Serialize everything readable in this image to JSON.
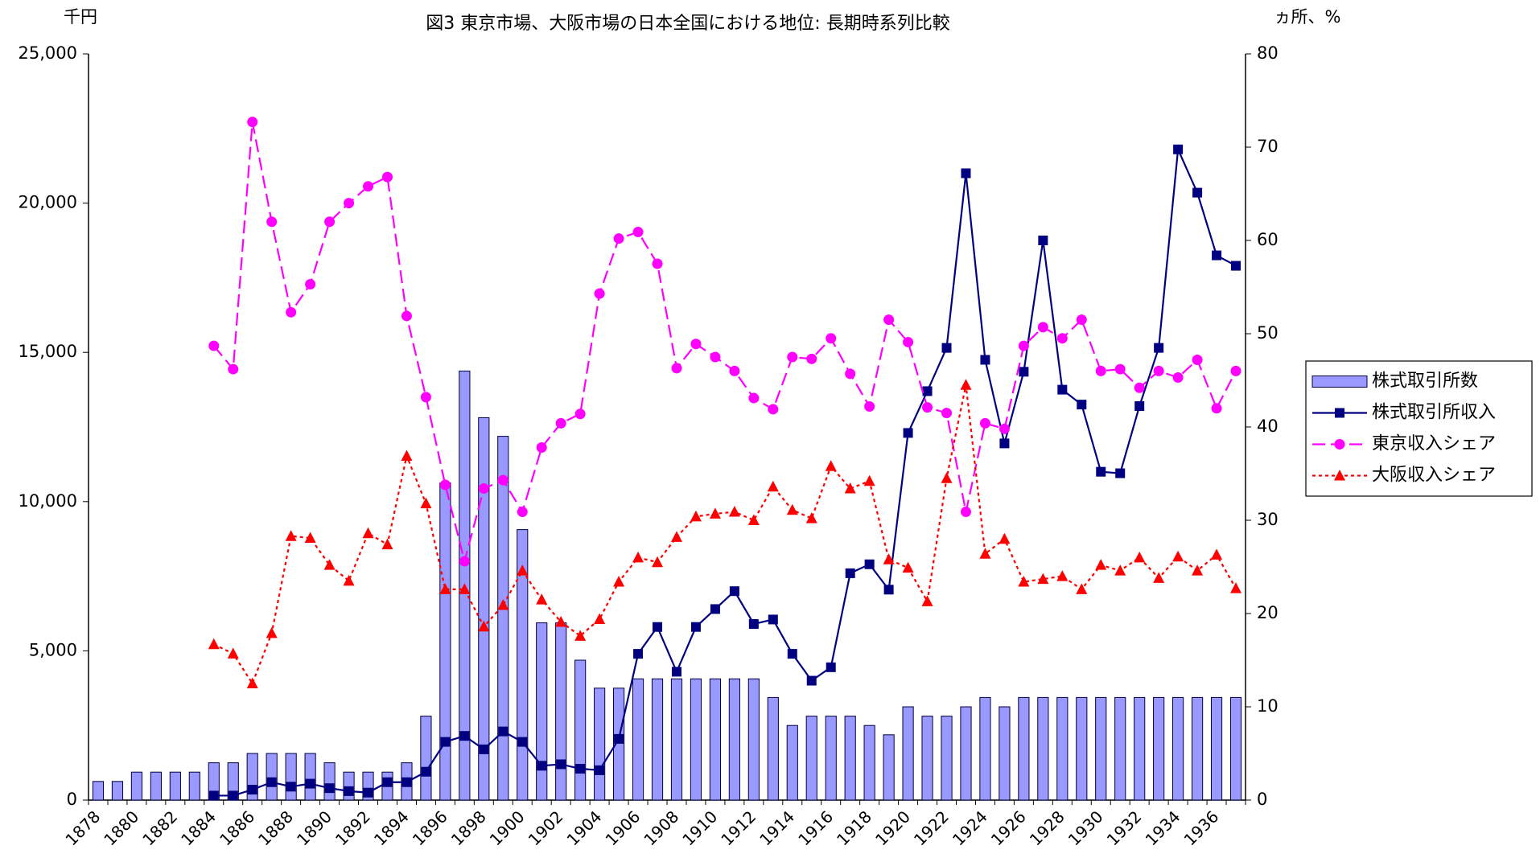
{
  "chart_data": {
    "type": "combo",
    "title": "図3 東京市場、大阪市場の日本全国における地位: 長期時系列比較",
    "y_label": "千円",
    "y2_label": "ヵ所、%",
    "categories": [
      "1878",
      null,
      "1880",
      null,
      "1882",
      null,
      "1884",
      null,
      "1886",
      null,
      "1888",
      null,
      "1890",
      null,
      "1892",
      null,
      "1894",
      null,
      "1896",
      null,
      "1898",
      null,
      "1900",
      null,
      "1902",
      null,
      "1904",
      null,
      "1906",
      null,
      "1908",
      null,
      "1910",
      null,
      "1912",
      null,
      "1914",
      null,
      "1916",
      null,
      "1918",
      null,
      "1920",
      null,
      "1922",
      null,
      "1924",
      null,
      "1926",
      null,
      "1928",
      null,
      "1930",
      null,
      "1932",
      null,
      "1934",
      null,
      "1936",
      null
    ],
    "ylim": [
      0,
      25000
    ],
    "yticks": [
      0,
      {
        "value": 5000,
        "label": "5,000"
      },
      {
        "value": 10000,
        "label": "10,000"
      },
      {
        "value": 15000,
        "label": "15,000"
      },
      {
        "value": 20000,
        "label": "20,000"
      },
      {
        "value": 25000,
        "label": "25,000"
      }
    ],
    "y2lim": [
      0,
      80
    ],
    "y2ticks": [
      0,
      10,
      20,
      30,
      40,
      50,
      60,
      70,
      80
    ],
    "grid": false,
    "legend": "right",
    "series": [
      {
        "name": "株式取引所数",
        "type": "bar",
        "axis": "y2",
        "color": "#9999ff",
        "values": [
          2,
          2,
          3,
          3,
          3,
          3,
          4,
          4,
          5,
          5,
          5,
          5,
          4,
          3,
          3,
          3,
          4,
          9,
          34,
          46,
          41,
          39,
          29,
          19,
          19,
          15,
          12,
          12,
          13,
          13,
          13,
          13,
          13,
          13,
          13,
          11,
          8,
          9,
          9,
          9,
          8,
          7,
          10,
          9,
          9,
          10,
          11,
          10,
          11,
          11,
          11,
          11,
          11,
          11,
          11,
          11,
          11,
          11,
          11,
          11
        ]
      },
      {
        "name": "株式取引所収入",
        "type": "line",
        "color": "#000080",
        "marker": "square",
        "line_style": "solid",
        "values": [
          null,
          null,
          null,
          null,
          null,
          null,
          150,
          150,
          350,
          600,
          450,
          550,
          400,
          300,
          250,
          600,
          600,
          950,
          1950,
          2150,
          1700,
          2300,
          1950,
          1150,
          1200,
          1050,
          1000,
          2050,
          4900,
          5800,
          4300,
          5800,
          6400,
          7000,
          5900,
          6050,
          4900,
          4000,
          4450,
          7600,
          7900,
          7050,
          12300,
          13700,
          15150,
          21000,
          14750,
          11950,
          14350,
          18750,
          13750,
          13250,
          11000,
          10950,
          13200,
          15150,
          21800,
          20350,
          18250,
          17900
        ]
      },
      {
        "name": "東京収入シェア",
        "type": "line",
        "axis": "y2",
        "color": "#ff00ff",
        "marker": "circle",
        "line_style": "dashed",
        "values": [
          null,
          null,
          null,
          null,
          null,
          null,
          48.7,
          46.2,
          72.7,
          62.0,
          52.3,
          55.3,
          62.0,
          64.0,
          65.8,
          66.8,
          51.9,
          43.2,
          33.8,
          25.6,
          33.4,
          34.3,
          30.9,
          37.8,
          40.4,
          41.4,
          54.3,
          60.2,
          60.9,
          57.5,
          46.3,
          48.9,
          47.5,
          46.0,
          43.1,
          41.9,
          47.5,
          47.3,
          49.5,
          45.7,
          42.2,
          51.5,
          49.1,
          42.1,
          41.5,
          30.9,
          40.4,
          39.8,
          48.7,
          50.7,
          49.5,
          51.5,
          46.0,
          46.2,
          44.2,
          46.0,
          45.3,
          47.2,
          42.0,
          46.0
        ]
      },
      {
        "name": "大阪収入シェア",
        "type": "line",
        "axis": "y2",
        "color": "#ff0000",
        "marker": "triangle",
        "line_style": "dotted",
        "values": [
          null,
          null,
          null,
          null,
          null,
          null,
          16.7,
          15.7,
          12.5,
          17.9,
          28.3,
          28.1,
          25.2,
          23.5,
          28.6,
          27.4,
          36.9,
          31.8,
          22.6,
          22.6,
          18.6,
          20.9,
          24.6,
          21.5,
          19.1,
          17.6,
          19.4,
          23.4,
          26.0,
          25.5,
          28.2,
          30.4,
          30.7,
          30.9,
          30.0,
          33.6,
          31.1,
          30.2,
          35.8,
          33.4,
          34.2,
          25.8,
          24.9,
          21.3,
          34.5,
          44.5,
          26.4,
          28.0,
          23.4,
          23.7,
          24.0,
          22.6,
          25.2,
          24.6,
          26.0,
          23.8,
          26.1,
          24.6,
          26.3,
          22.7
        ]
      }
    ]
  }
}
